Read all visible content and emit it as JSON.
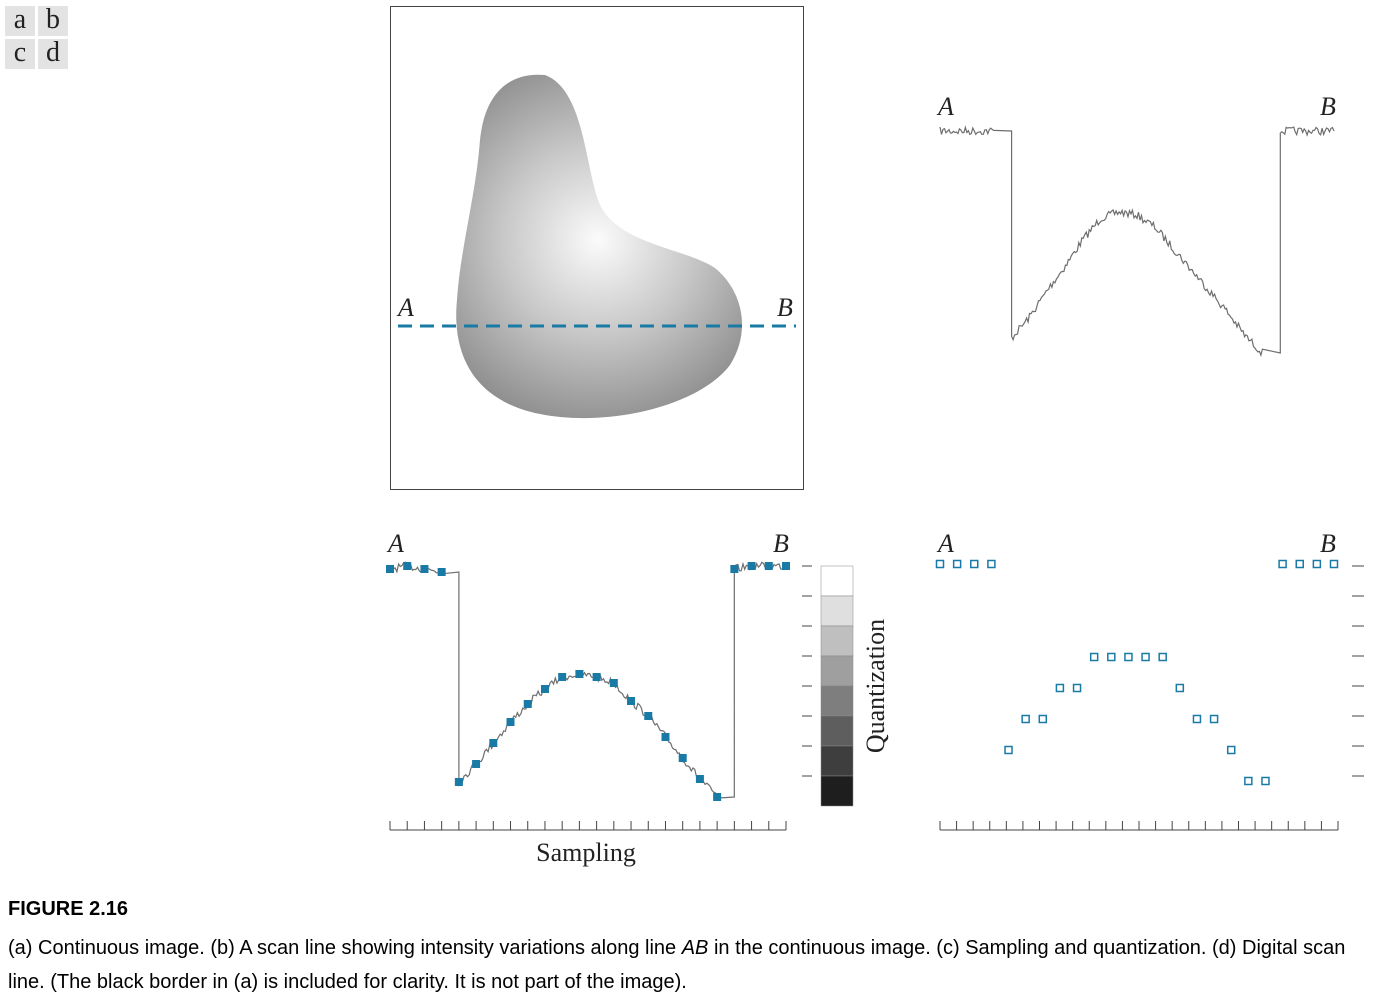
{
  "legend": [
    {
      "letter": "a"
    },
    {
      "letter": "b"
    },
    {
      "letter": "c"
    },
    {
      "letter": "d"
    }
  ],
  "panel_a": {
    "label_a": "A",
    "label_b": "B"
  },
  "panel_b": {
    "label_a": "A",
    "label_b": "B"
  },
  "panel_c": {
    "label_a": "A",
    "label_b": "B",
    "xlabel": "Sampling",
    "scale_label": "Quantization"
  },
  "panel_d": {
    "label_a": "A",
    "label_b": "B"
  },
  "colors": {
    "accent": "#1a7aa6",
    "scan_line": "#6e6e6e"
  },
  "figure": {
    "title": "FIGURE 2.16",
    "caption_part1": "(a) Continuous image. (b) A scan line showing intensity variations along line ",
    "caption_italic": "AB",
    "caption_part2": " in the continuous image. (c) Sampling and quantization. (d) Digital scan line. (The black border in (a) is included for clarity. It is not part of the image)."
  },
  "chart_data": [
    {
      "type": "line",
      "panel": "b",
      "series": [
        {
          "values": [
            7.9,
            7.9,
            7.9,
            7.9,
            1.0,
            1.7,
            2.6,
            3.4,
            4.3,
            5.0,
            5.2,
            5.1,
            4.7,
            4.0,
            3.3,
            2.6,
            1.9,
            1.1,
            0.5,
            7.9,
            7.9,
            7.9,
            7.9
          ]
        }
      ]
    },
    {
      "type": "scatter",
      "panel": "c",
      "samples_x": [
        0,
        1,
        2,
        3,
        4,
        5,
        6,
        7,
        8,
        9,
        10,
        11,
        12,
        13,
        14,
        15,
        16,
        17,
        18,
        19,
        20,
        21,
        22,
        23
      ],
      "samples_y": [
        7.9,
        8.0,
        7.9,
        7.8,
        0.8,
        1.4,
        2.1,
        2.8,
        3.4,
        3.9,
        4.3,
        4.4,
        4.3,
        4.1,
        3.5,
        3.0,
        2.3,
        1.6,
        0.9,
        0.3,
        7.9,
        8.0,
        8.0,
        8.0
      ],
      "x_ticks": 24,
      "quantization_levels": 8
    },
    {
      "type": "scatter",
      "panel": "d",
      "x": [
        0,
        1,
        2,
        3,
        4,
        5,
        6,
        7,
        8,
        9,
        10,
        11,
        12,
        13,
        14,
        15,
        16,
        17,
        18,
        19,
        20,
        21,
        22,
        23
      ],
      "y": [
        7,
        7,
        7,
        7,
        1,
        2,
        2,
        3,
        3,
        4,
        4,
        4,
        4,
        4,
        3,
        2,
        2,
        1,
        0,
        0,
        7,
        7,
        7,
        7
      ],
      "x_ticks": 24,
      "quantization_levels": 8
    }
  ]
}
